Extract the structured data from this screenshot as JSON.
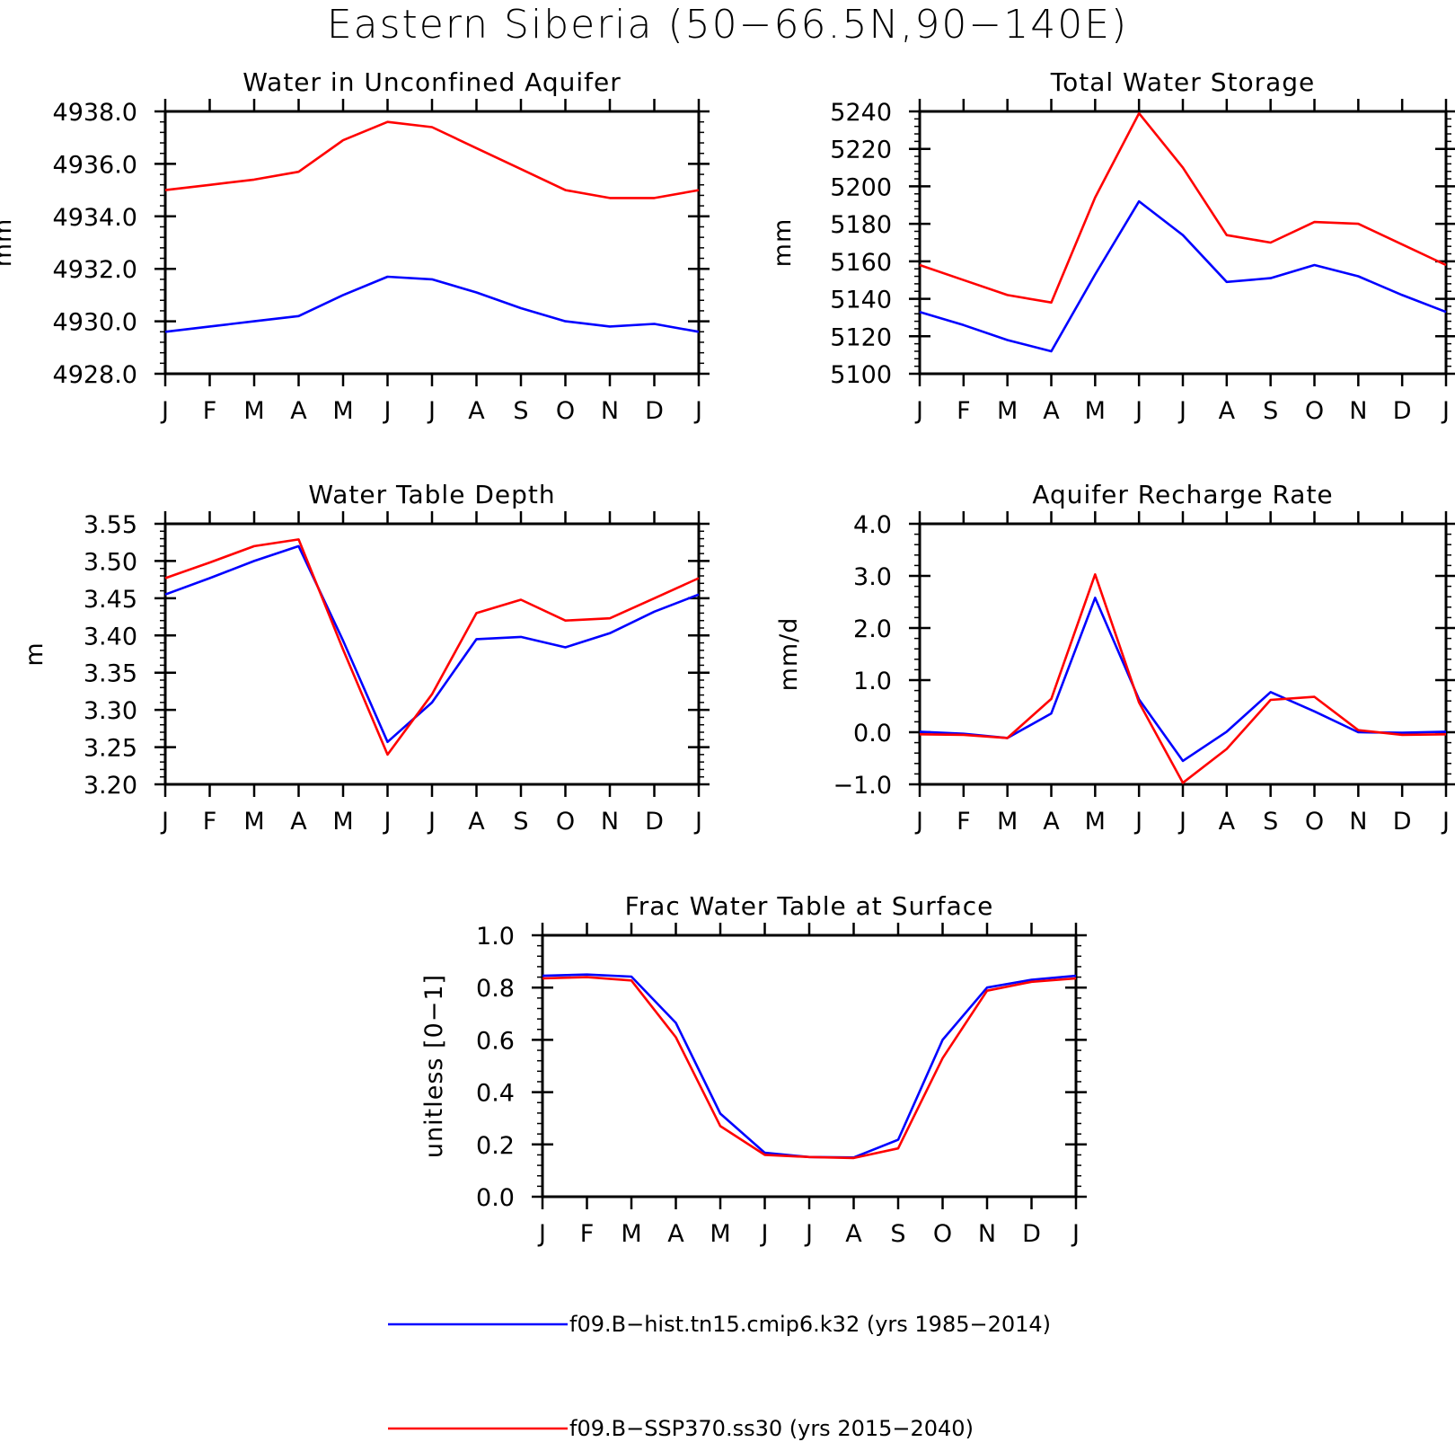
{
  "figure": {
    "title": "Eastern Siberia (50−66.5N,90−140E)"
  },
  "legend": {
    "entries": [
      {
        "label": "f09.B−hist.tn15.cmip6.k32 (yrs 1985−2014)",
        "color": "#0000ff"
      },
      {
        "label": "f09.B−SSP370.ss30 (yrs 2015−2040)",
        "color": "#ff0000"
      }
    ]
  },
  "chart_data": [
    {
      "id": "unconfined-aquifer",
      "type": "line",
      "title": "Water in Unconfined Aquifer",
      "xlabel": "",
      "ylabel": "mm",
      "categories": [
        "J",
        "F",
        "M",
        "A",
        "M",
        "J",
        "J",
        "A",
        "S",
        "O",
        "N",
        "D",
        "J"
      ],
      "ylim": [
        4928.0,
        4938.0
      ],
      "yticks": [
        4928.0,
        4930.0,
        4932.0,
        4934.0,
        4936.0,
        4938.0
      ],
      "yminor": 0.4,
      "ytick_decimals": 1,
      "series": [
        {
          "color": "#0000ff",
          "values": [
            4929.6,
            4929.8,
            4930.0,
            4930.2,
            4931.0,
            4931.7,
            4931.6,
            4931.1,
            4930.5,
            4930.0,
            4929.8,
            4929.9,
            4929.6
          ]
        },
        {
          "color": "#ff0000",
          "values": [
            4935.0,
            4935.2,
            4935.4,
            4935.7,
            4936.9,
            4937.6,
            4937.4,
            4936.6,
            4935.8,
            4935.0,
            4934.7,
            4934.7,
            4935.0
          ]
        }
      ]
    },
    {
      "id": "total-water-storage",
      "type": "line",
      "title": "Total Water Storage",
      "xlabel": "",
      "ylabel": "mm",
      "categories": [
        "J",
        "F",
        "M",
        "A",
        "M",
        "J",
        "J",
        "A",
        "S",
        "O",
        "N",
        "D",
        "J"
      ],
      "ylim": [
        5100,
        5240
      ],
      "yticks": [
        5100,
        5120,
        5140,
        5160,
        5180,
        5200,
        5220,
        5240
      ],
      "yminor": 4,
      "ytick_decimals": 0,
      "series": [
        {
          "color": "#0000ff",
          "values": [
            5133,
            5126,
            5118,
            5112,
            5153,
            5192,
            5174,
            5149,
            5151,
            5158,
            5152,
            5142,
            5133
          ]
        },
        {
          "color": "#ff0000",
          "values": [
            5158,
            5150,
            5142,
            5138,
            5194,
            5239,
            5210,
            5174,
            5170,
            5181,
            5180,
            5169,
            5158
          ]
        }
      ]
    },
    {
      "id": "water-table-depth",
      "type": "line",
      "title": "Water Table Depth",
      "xlabel": "",
      "ylabel": "m",
      "categories": [
        "J",
        "F",
        "M",
        "A",
        "M",
        "J",
        "J",
        "A",
        "S",
        "O",
        "N",
        "D",
        "J"
      ],
      "ylim": [
        3.2,
        3.55
      ],
      "yticks": [
        3.2,
        3.25,
        3.3,
        3.35,
        3.4,
        3.45,
        3.5,
        3.55
      ],
      "yminor": 0.01,
      "ytick_decimals": 2,
      "series": [
        {
          "color": "#0000ff",
          "values": [
            3.455,
            3.477,
            3.5,
            3.52,
            3.393,
            3.257,
            3.31,
            3.395,
            3.398,
            3.384,
            3.403,
            3.432,
            3.455
          ]
        },
        {
          "color": "#ff0000",
          "values": [
            3.477,
            3.498,
            3.52,
            3.529,
            3.381,
            3.24,
            3.321,
            3.43,
            3.448,
            3.42,
            3.423,
            3.45,
            3.477
          ]
        }
      ]
    },
    {
      "id": "aquifer-recharge",
      "type": "line",
      "title": "Aquifer Recharge Rate",
      "xlabel": "",
      "ylabel": "mm/d",
      "categories": [
        "J",
        "F",
        "M",
        "A",
        "M",
        "J",
        "J",
        "A",
        "S",
        "O",
        "N",
        "D",
        "J"
      ],
      "ylim": [
        -1.0,
        4.0
      ],
      "yticks": [
        -1.0,
        0.0,
        1.0,
        2.0,
        3.0,
        4.0
      ],
      "yminor": 0.2,
      "ytick_decimals": 1,
      "series": [
        {
          "color": "#0000ff",
          "values": [
            0.01,
            -0.03,
            -0.11,
            0.36,
            2.58,
            0.63,
            -0.55,
            0.01,
            0.77,
            0.4,
            0.0,
            -0.01,
            0.01
          ]
        },
        {
          "color": "#ff0000",
          "values": [
            -0.04,
            -0.05,
            -0.11,
            0.64,
            3.03,
            0.57,
            -0.97,
            -0.32,
            0.62,
            0.68,
            0.04,
            -0.05,
            -0.04
          ]
        }
      ]
    },
    {
      "id": "frac-water-table",
      "type": "line",
      "title": "Frac Water Table at Surface",
      "xlabel": "",
      "ylabel": "unitless [0−1]",
      "categories": [
        "J",
        "F",
        "M",
        "A",
        "M",
        "J",
        "J",
        "A",
        "S",
        "O",
        "N",
        "D",
        "J"
      ],
      "ylim": [
        0.0,
        1.0
      ],
      "yticks": [
        0.0,
        0.2,
        0.4,
        0.6,
        0.8,
        1.0
      ],
      "yminor": 0.04,
      "ytick_decimals": 1,
      "series": [
        {
          "color": "#0000ff",
          "values": [
            0.845,
            0.85,
            0.842,
            0.665,
            0.318,
            0.168,
            0.152,
            0.15,
            0.218,
            0.6,
            0.8,
            0.83,
            0.845
          ]
        },
        {
          "color": "#ff0000",
          "values": [
            0.835,
            0.84,
            0.827,
            0.61,
            0.27,
            0.16,
            0.152,
            0.148,
            0.185,
            0.53,
            0.788,
            0.822,
            0.835
          ]
        }
      ]
    }
  ]
}
